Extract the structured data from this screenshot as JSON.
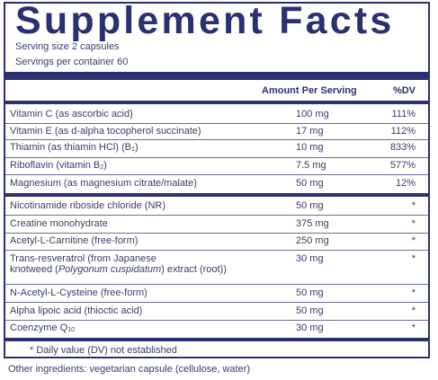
{
  "panel": {
    "title": "Supplement Facts",
    "serving_size": "Serving size  2 capsules",
    "servings_per_container": "Servings per container  60",
    "col_amount": "Amount Per Serving",
    "col_dv": "%DV",
    "rows": [
      {
        "name": "Vitamin C (as ascorbic acid)",
        "amount": "100 mg",
        "dv": "111%"
      },
      {
        "name": "Vitamin E (as d-alpha tocopherol succinate)",
        "amount": "17 mg",
        "dv": "112%"
      },
      {
        "name_pre": "Thiamin (as thiamin HCl) (B",
        "name_sub": "1",
        "name_post": ")",
        "amount": "10 mg",
        "dv": "833%"
      },
      {
        "name_pre": "Riboflavin (vitamin B",
        "name_sub": "2",
        "name_post": ")",
        "amount": "7.5 mg",
        "dv": "577%"
      },
      {
        "name": "Magnesium (as magnesium citrate/malate)",
        "amount": "50 mg",
        "dv": "12%"
      },
      {
        "name": "Nicotinamide riboside chloride (NR)",
        "amount": "50 mg",
        "dv": "*"
      },
      {
        "name": "Creatine monohydrate",
        "amount": "375 mg",
        "dv": "*"
      },
      {
        "name": "Acetyl-L-Carnitine (free-form)",
        "amount": "250 mg",
        "dv": "*"
      },
      {
        "name_line1": "Trans-resveratrol (from Japanese",
        "name_line2_pre": "knotweed (",
        "name_line2_italic": "Polygonum cuspidatum",
        "name_line2_post": ") extract (root))",
        "amount": "30 mg",
        "dv": "*"
      },
      {
        "name": "N-Acetyl-L-Cysteine (free-form)",
        "amount": "50 mg",
        "dv": "*"
      },
      {
        "name": "Alpha lipoic acid (thioctic acid)",
        "amount": "50 mg",
        "dv": "*"
      },
      {
        "name_pre": "Coenzyme Q",
        "name_sub": "10",
        "name_post": "",
        "amount": "30 mg",
        "dv": "*"
      }
    ],
    "footnote": "* Daily value (DV) not established"
  },
  "other_ingredients": "Other ingredients: vegetarian capsule (cellulose, water)",
  "colors": {
    "navy": "#2b3170",
    "text": "#3a3d66"
  }
}
